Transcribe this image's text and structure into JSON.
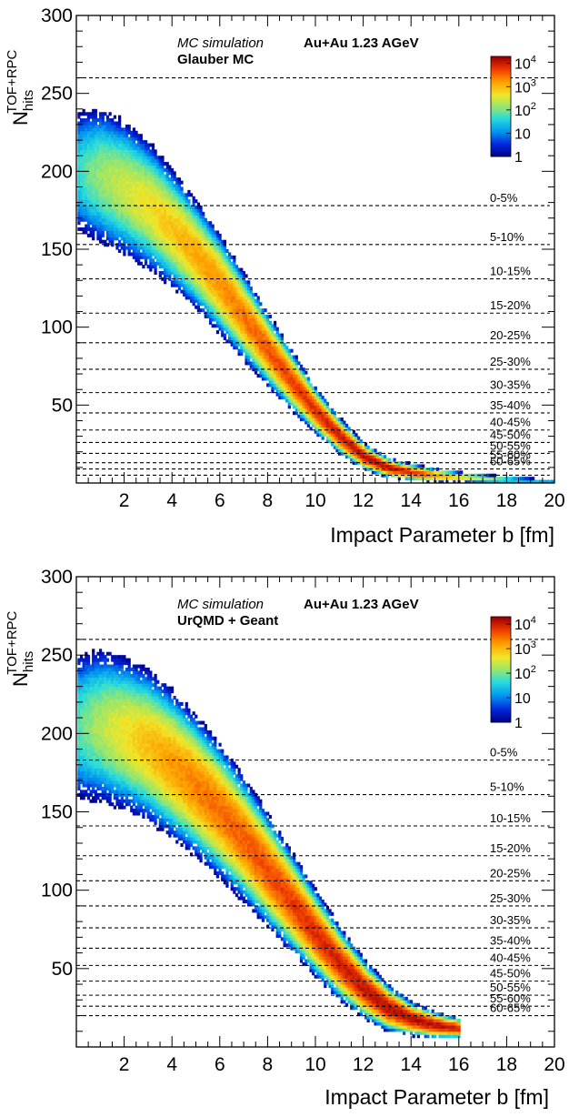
{
  "chart_data": [
    {
      "type": "heatmap",
      "annotation_italic": "MC simulation",
      "annotation_bold": "Au+Au 1.23 AGeV",
      "model_label": "Glauber MC",
      "xlabel": "Impact Parameter b [fm]",
      "ylabel_main": "N",
      "ylabel_sup": "TOF+RPC",
      "ylabel_sub": "hits",
      "xlim": [
        0,
        20
      ],
      "ylim": [
        0,
        300
      ],
      "x_ticks": [
        2,
        4,
        6,
        8,
        10,
        12,
        14,
        16,
        18,
        20
      ],
      "y_ticks": [
        50,
        100,
        150,
        200,
        250,
        300
      ],
      "z_scale": "log",
      "z_range": [
        1,
        20000
      ],
      "colorbar_labels": [
        {
          "base": "10",
          "exp": "4",
          "value": 10000
        },
        {
          "base": "10",
          "exp": "3",
          "value": 1000
        },
        {
          "base": "10",
          "exp": "2",
          "value": 100
        },
        {
          "base": "10",
          "exp": "",
          "value": 10
        },
        {
          "base": "1",
          "exp": "",
          "value": 1
        }
      ],
      "band": {
        "b": [
          0.0,
          1.0,
          2.0,
          3.0,
          4.0,
          5.0,
          6.0,
          7.0,
          8.0,
          9.0,
          10.0,
          11.0,
          12.0,
          13.0,
          14.0,
          15.0,
          16.0,
          17.0,
          18.0,
          19.0,
          20.0
        ],
        "mean": [
          200,
          197,
          189,
          178,
          163,
          146,
          127,
          106,
          85,
          65,
          46,
          30,
          17,
          10,
          7,
          5,
          4,
          3,
          2,
          1.5,
          1
        ],
        "half_width": [
          35,
          40,
          40,
          38,
          35,
          32,
          30,
          26,
          22,
          18,
          14,
          11,
          8,
          6,
          5,
          4,
          3,
          2.5,
          2,
          1.5,
          1
        ],
        "peak_counts": [
          40,
          150,
          300,
          500,
          900,
          1400,
          2000,
          3000,
          4500,
          6000,
          8000,
          11000,
          15000,
          13000,
          6000,
          2000,
          600,
          200,
          80,
          30,
          10
        ],
        "max_b": 20
      },
      "centrality_classes": [
        {
          "label": "0-5%",
          "cut": 178
        },
        {
          "label": "5-10%",
          "cut": 153
        },
        {
          "label": "10-15%",
          "cut": 131
        },
        {
          "label": "15-20%",
          "cut": 109
        },
        {
          "label": "20-25%",
          "cut": 90
        },
        {
          "label": "25-30%",
          "cut": 73
        },
        {
          "label": "30-35%",
          "cut": 58
        },
        {
          "label": "35-40%",
          "cut": 45
        },
        {
          "label": "40-45%",
          "cut": 34
        },
        {
          "label": "45-50%",
          "cut": 26
        },
        {
          "label": "50-55%",
          "cut": 19
        },
        {
          "label": "55-60%",
          "cut": 13
        },
        {
          "label": "60-65%",
          "cut": 9
        }
      ],
      "extra_dashed_lines": [
        260,
        5
      ]
    },
    {
      "type": "heatmap",
      "annotation_italic": "MC simulation",
      "annotation_bold": "Au+Au 1.23 AGeV",
      "model_label": "UrQMD + Geant",
      "xlabel": "Impact Parameter b [fm]",
      "ylabel_main": "N",
      "ylabel_sup": "TOF+RPC",
      "ylabel_sub": "hits",
      "xlim": [
        0,
        20
      ],
      "ylim": [
        0,
        300
      ],
      "x_ticks": [
        2,
        4,
        6,
        8,
        10,
        12,
        14,
        16,
        18,
        20
      ],
      "y_ticks": [
        50,
        100,
        150,
        200,
        250,
        300
      ],
      "z_scale": "log",
      "z_range": [
        1,
        20000
      ],
      "colorbar_labels": [
        {
          "base": "10",
          "exp": "4",
          "value": 10000
        },
        {
          "base": "10",
          "exp": "3",
          "value": 1000
        },
        {
          "base": "10",
          "exp": "2",
          "value": 100
        },
        {
          "base": "10",
          "exp": "",
          "value": 10
        },
        {
          "base": "1",
          "exp": "",
          "value": 1
        }
      ],
      "band": {
        "b": [
          0.0,
          1.0,
          2.0,
          3.0,
          4.0,
          5.0,
          6.0,
          7.0,
          8.0,
          9.0,
          10.0,
          11.0,
          12.0,
          13.0,
          14.0,
          15.0,
          16.0
        ],
        "mean": [
          205,
          205,
          200,
          192,
          180,
          166,
          150,
          132,
          112,
          92,
          72,
          53,
          37,
          25,
          18,
          14,
          12
        ],
        "half_width": [
          42,
          45,
          45,
          45,
          44,
          42,
          40,
          37,
          34,
          30,
          26,
          22,
          18,
          14,
          10,
          8,
          6
        ],
        "peak_counts": [
          60,
          200,
          500,
          1000,
          1800,
          2600,
          3300,
          4000,
          5000,
          6500,
          8000,
          10000,
          13000,
          15000,
          16000,
          14000,
          9000
        ],
        "max_b": 16
      },
      "centrality_classes": [
        {
          "label": "0-5%",
          "cut": 183
        },
        {
          "label": "5-10%",
          "cut": 161
        },
        {
          "label": "10-15%",
          "cut": 141
        },
        {
          "label": "15-20%",
          "cut": 122
        },
        {
          "label": "20-25%",
          "cut": 106
        },
        {
          "label": "25-30%",
          "cut": 90
        },
        {
          "label": "30-35%",
          "cut": 76
        },
        {
          "label": "35-40%",
          "cut": 63
        },
        {
          "label": "40-45%",
          "cut": 52
        },
        {
          "label": "45-50%",
          "cut": 42
        },
        {
          "label": "50-55%",
          "cut": 33
        },
        {
          "label": "55-60%",
          "cut": 26
        },
        {
          "label": "60-65%",
          "cut": 20
        }
      ],
      "extra_dashed_lines": [
        260
      ]
    }
  ]
}
